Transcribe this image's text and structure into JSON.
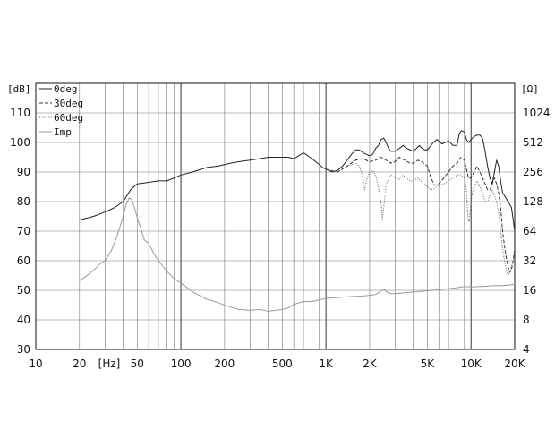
{
  "chart_data": {
    "type": "line",
    "title": "",
    "xlabel": "",
    "ylabel": "",
    "x_scale": "log",
    "xlim": [
      10,
      20000
    ],
    "ylim": [
      30,
      120
    ],
    "y2lim": [
      4,
      2048
    ],
    "y2_scale": "log2",
    "grid": true,
    "legend_position": "top-left",
    "x_unit_label": "[Hz]",
    "y_unit_label": "[dB]",
    "y2_unit_label": "[Ω]",
    "x_ticks": [
      {
        "v": 10,
        "label": "10"
      },
      {
        "v": 20,
        "label": "20"
      },
      {
        "v": 50,
        "label": "50"
      },
      {
        "v": 100,
        "label": "100"
      },
      {
        "v": 200,
        "label": "200"
      },
      {
        "v": 500,
        "label": "500"
      },
      {
        "v": 1000,
        "label": "1K"
      },
      {
        "v": 2000,
        "label": "2K"
      },
      {
        "v": 5000,
        "label": "5K"
      },
      {
        "v": 10000,
        "label": "10K"
      },
      {
        "v": 20000,
        "label": "20K"
      }
    ],
    "y_ticks": [
      {
        "v": 30,
        "label": "30"
      },
      {
        "v": 40,
        "label": "40"
      },
      {
        "v": 50,
        "label": "50"
      },
      {
        "v": 60,
        "label": "60"
      },
      {
        "v": 70,
        "label": "70"
      },
      {
        "v": 80,
        "label": "80"
      },
      {
        "v": 90,
        "label": "90"
      },
      {
        "v": 100,
        "label": "100"
      },
      {
        "v": 110,
        "label": "110"
      }
    ],
    "y2_ticks": [
      {
        "v": 4,
        "label": "4"
      },
      {
        "v": 8,
        "label": "8"
      },
      {
        "v": 16,
        "label": "16"
      },
      {
        "v": 32,
        "label": "32"
      },
      {
        "v": 64,
        "label": "64"
      },
      {
        "v": 128,
        "label": "128"
      },
      {
        "v": 256,
        "label": "256"
      },
      {
        "v": 512,
        "label": "512"
      },
      {
        "v": 1024,
        "label": "1024"
      }
    ],
    "series": [
      {
        "name": "0deg",
        "style": "solid",
        "color": "#222222",
        "axis": "left",
        "points": [
          [
            20,
            73.8
          ],
          [
            25,
            75
          ],
          [
            30,
            76.5
          ],
          [
            35,
            78
          ],
          [
            40,
            80
          ],
          [
            45,
            84
          ],
          [
            50,
            86
          ],
          [
            60,
            86.5
          ],
          [
            70,
            87
          ],
          [
            80,
            87
          ],
          [
            90,
            88
          ],
          [
            100,
            89
          ],
          [
            120,
            90
          ],
          [
            150,
            91.5
          ],
          [
            180,
            92
          ],
          [
            200,
            92.5
          ],
          [
            220,
            93
          ],
          [
            250,
            93.5
          ],
          [
            300,
            94
          ],
          [
            350,
            94.5
          ],
          [
            400,
            95
          ],
          [
            450,
            95
          ],
          [
            500,
            95
          ],
          [
            550,
            95
          ],
          [
            600,
            94.5
          ],
          [
            650,
            95.5
          ],
          [
            700,
            96.5
          ],
          [
            750,
            95.5
          ],
          [
            800,
            94.5
          ],
          [
            850,
            93.5
          ],
          [
            900,
            92.5
          ],
          [
            950,
            91.5
          ],
          [
            1000,
            91
          ],
          [
            1100,
            90
          ],
          [
            1200,
            90.5
          ],
          [
            1300,
            92
          ],
          [
            1400,
            94
          ],
          [
            1500,
            96
          ],
          [
            1600,
            97.5
          ],
          [
            1700,
            97.5
          ],
          [
            1800,
            96.5
          ],
          [
            1900,
            96
          ],
          [
            2000,
            95.5
          ],
          [
            2100,
            96
          ],
          [
            2200,
            98
          ],
          [
            2300,
            99
          ],
          [
            2400,
            101
          ],
          [
            2500,
            101.5
          ],
          [
            2600,
            100
          ],
          [
            2700,
            98
          ],
          [
            2800,
            97
          ],
          [
            3000,
            97
          ],
          [
            3200,
            98
          ],
          [
            3400,
            99
          ],
          [
            3600,
            98
          ],
          [
            3800,
            97.5
          ],
          [
            4000,
            97
          ],
          [
            4200,
            98
          ],
          [
            4400,
            99
          ],
          [
            4600,
            98
          ],
          [
            4800,
            97.5
          ],
          [
            5000,
            97.5
          ],
          [
            5200,
            98.5
          ],
          [
            5500,
            100
          ],
          [
            5800,
            101
          ],
          [
            6000,
            100.5
          ],
          [
            6300,
            99.5
          ],
          [
            6600,
            100
          ],
          [
            7000,
            100.5
          ],
          [
            7500,
            99
          ],
          [
            8000,
            99
          ],
          [
            8300,
            103
          ],
          [
            8600,
            104
          ],
          [
            9000,
            103.5
          ],
          [
            9300,
            101
          ],
          [
            9600,
            100
          ],
          [
            10000,
            101
          ],
          [
            10500,
            102
          ],
          [
            11000,
            102.5
          ],
          [
            11500,
            102.5
          ],
          [
            12000,
            101.5
          ],
          [
            12500,
            97
          ],
          [
            13000,
            92
          ],
          [
            13500,
            88
          ],
          [
            14000,
            86
          ],
          [
            14500,
            90
          ],
          [
            15000,
            94
          ],
          [
            15500,
            92
          ],
          [
            16000,
            87
          ],
          [
            16500,
            83
          ],
          [
            17000,
            82
          ],
          [
            18000,
            80
          ],
          [
            19000,
            78
          ],
          [
            20000,
            70
          ]
        ]
      },
      {
        "name": "30deg",
        "style": "dashed",
        "color": "#333333",
        "axis": "left",
        "points": [
          [
            1000,
            91
          ],
          [
            1200,
            90
          ],
          [
            1400,
            92
          ],
          [
            1600,
            94
          ],
          [
            1800,
            94.5
          ],
          [
            2000,
            93.5
          ],
          [
            2200,
            94
          ],
          [
            2400,
            95
          ],
          [
            2600,
            94
          ],
          [
            2800,
            93
          ],
          [
            3000,
            93.5
          ],
          [
            3200,
            95
          ],
          [
            3500,
            94
          ],
          [
            3800,
            93
          ],
          [
            4000,
            93
          ],
          [
            4300,
            94
          ],
          [
            4600,
            93.5
          ],
          [
            5000,
            92
          ],
          [
            5300,
            88
          ],
          [
            5600,
            85.5
          ],
          [
            6000,
            86
          ],
          [
            6500,
            88
          ],
          [
            7000,
            90
          ],
          [
            7500,
            92
          ],
          [
            8000,
            93
          ],
          [
            8500,
            95
          ],
          [
            9000,
            94
          ],
          [
            9300,
            91
          ],
          [
            9600,
            88
          ],
          [
            10000,
            88
          ],
          [
            10500,
            90
          ],
          [
            11000,
            92
          ],
          [
            11500,
            90
          ],
          [
            12000,
            88
          ],
          [
            12500,
            86
          ],
          [
            13000,
            84
          ],
          [
            13500,
            84
          ],
          [
            14000,
            86
          ],
          [
            14500,
            88
          ],
          [
            15000,
            86
          ],
          [
            15500,
            83
          ],
          [
            16000,
            78
          ],
          [
            16500,
            70
          ],
          [
            17000,
            65
          ],
          [
            17500,
            61
          ],
          [
            18000,
            58
          ],
          [
            18500,
            56
          ],
          [
            19000,
            57
          ],
          [
            19500,
            60
          ],
          [
            20000,
            64
          ]
        ]
      },
      {
        "name": "60deg",
        "style": "dotted",
        "color": "#666666",
        "axis": "left",
        "points": [
          [
            1000,
            91
          ],
          [
            1200,
            90
          ],
          [
            1400,
            92
          ],
          [
            1600,
            93
          ],
          [
            1700,
            92
          ],
          [
            1800,
            88
          ],
          [
            1850,
            84
          ],
          [
            1900,
            87
          ],
          [
            2000,
            90
          ],
          [
            2100,
            90.5
          ],
          [
            2200,
            89
          ],
          [
            2300,
            85
          ],
          [
            2400,
            79
          ],
          [
            2450,
            74
          ],
          [
            2500,
            78
          ],
          [
            2600,
            86
          ],
          [
            2800,
            89
          ],
          [
            3000,
            88
          ],
          [
            3200,
            87.5
          ],
          [
            3400,
            89
          ],
          [
            3600,
            88
          ],
          [
            3800,
            87
          ],
          [
            4000,
            87
          ],
          [
            4300,
            88
          ],
          [
            4600,
            86.5
          ],
          [
            5000,
            85
          ],
          [
            5300,
            84
          ],
          [
            5600,
            84.5
          ],
          [
            6000,
            85.5
          ],
          [
            6500,
            86
          ],
          [
            7000,
            87
          ],
          [
            7500,
            88
          ],
          [
            8000,
            89
          ],
          [
            8500,
            89
          ],
          [
            9000,
            88
          ],
          [
            9300,
            84
          ],
          [
            9500,
            75
          ],
          [
            9700,
            73
          ],
          [
            9900,
            78
          ],
          [
            10200,
            83
          ],
          [
            10500,
            85
          ],
          [
            11000,
            87
          ],
          [
            11500,
            85
          ],
          [
            12000,
            83
          ],
          [
            12500,
            80
          ],
          [
            13000,
            80
          ],
          [
            13500,
            82
          ],
          [
            14000,
            84
          ],
          [
            14500,
            82
          ],
          [
            15000,
            80
          ],
          [
            15500,
            76
          ],
          [
            16000,
            70
          ],
          [
            16500,
            64
          ],
          [
            17000,
            60
          ],
          [
            17500,
            57
          ],
          [
            18000,
            55
          ],
          [
            18500,
            56
          ],
          [
            19000,
            58
          ],
          [
            19500,
            60
          ],
          [
            20000,
            62
          ]
        ]
      },
      {
        "name": "Imp",
        "style": "solid",
        "color": "#9a9a9a",
        "axis": "right",
        "points": [
          [
            20,
            20
          ],
          [
            22,
            22
          ],
          [
            25,
            25.5
          ],
          [
            28,
            30
          ],
          [
            30,
            32
          ],
          [
            33,
            40
          ],
          [
            36,
            55
          ],
          [
            40,
            90
          ],
          [
            42,
            120
          ],
          [
            44,
            140
          ],
          [
            46,
            133
          ],
          [
            48,
            110
          ],
          [
            50,
            88
          ],
          [
            53,
            68
          ],
          [
            56,
            52
          ],
          [
            60,
            48
          ],
          [
            65,
            38
          ],
          [
            70,
            32
          ],
          [
            80,
            25
          ],
          [
            90,
            21
          ],
          [
            100,
            19
          ],
          [
            120,
            15.5
          ],
          [
            150,
            13
          ],
          [
            180,
            12
          ],
          [
            200,
            11.3
          ],
          [
            250,
            10.2
          ],
          [
            300,
            10
          ],
          [
            350,
            10.2
          ],
          [
            400,
            9.8
          ],
          [
            450,
            10
          ],
          [
            500,
            10.2
          ],
          [
            550,
            10.6
          ],
          [
            600,
            11.5
          ],
          [
            700,
            12.3
          ],
          [
            800,
            12.3
          ],
          [
            900,
            12.8
          ],
          [
            1000,
            13.2
          ],
          [
            1200,
            13.5
          ],
          [
            1500,
            13.8
          ],
          [
            1800,
            14
          ],
          [
            2000,
            14.2
          ],
          [
            2200,
            14.5
          ],
          [
            2400,
            15.8
          ],
          [
            2500,
            16.5
          ],
          [
            2600,
            15.5
          ],
          [
            2800,
            14.8
          ],
          [
            3000,
            14.8
          ],
          [
            3500,
            15.1
          ],
          [
            4000,
            15.4
          ],
          [
            5000,
            15.8
          ],
          [
            6000,
            16.3
          ],
          [
            7000,
            16.6
          ],
          [
            8000,
            17
          ],
          [
            9000,
            17.5
          ],
          [
            10000,
            17.3
          ],
          [
            12000,
            17.5
          ],
          [
            14000,
            17.8
          ],
          [
            16000,
            17.8
          ],
          [
            18000,
            18
          ],
          [
            20000,
            18.5
          ]
        ]
      }
    ]
  }
}
